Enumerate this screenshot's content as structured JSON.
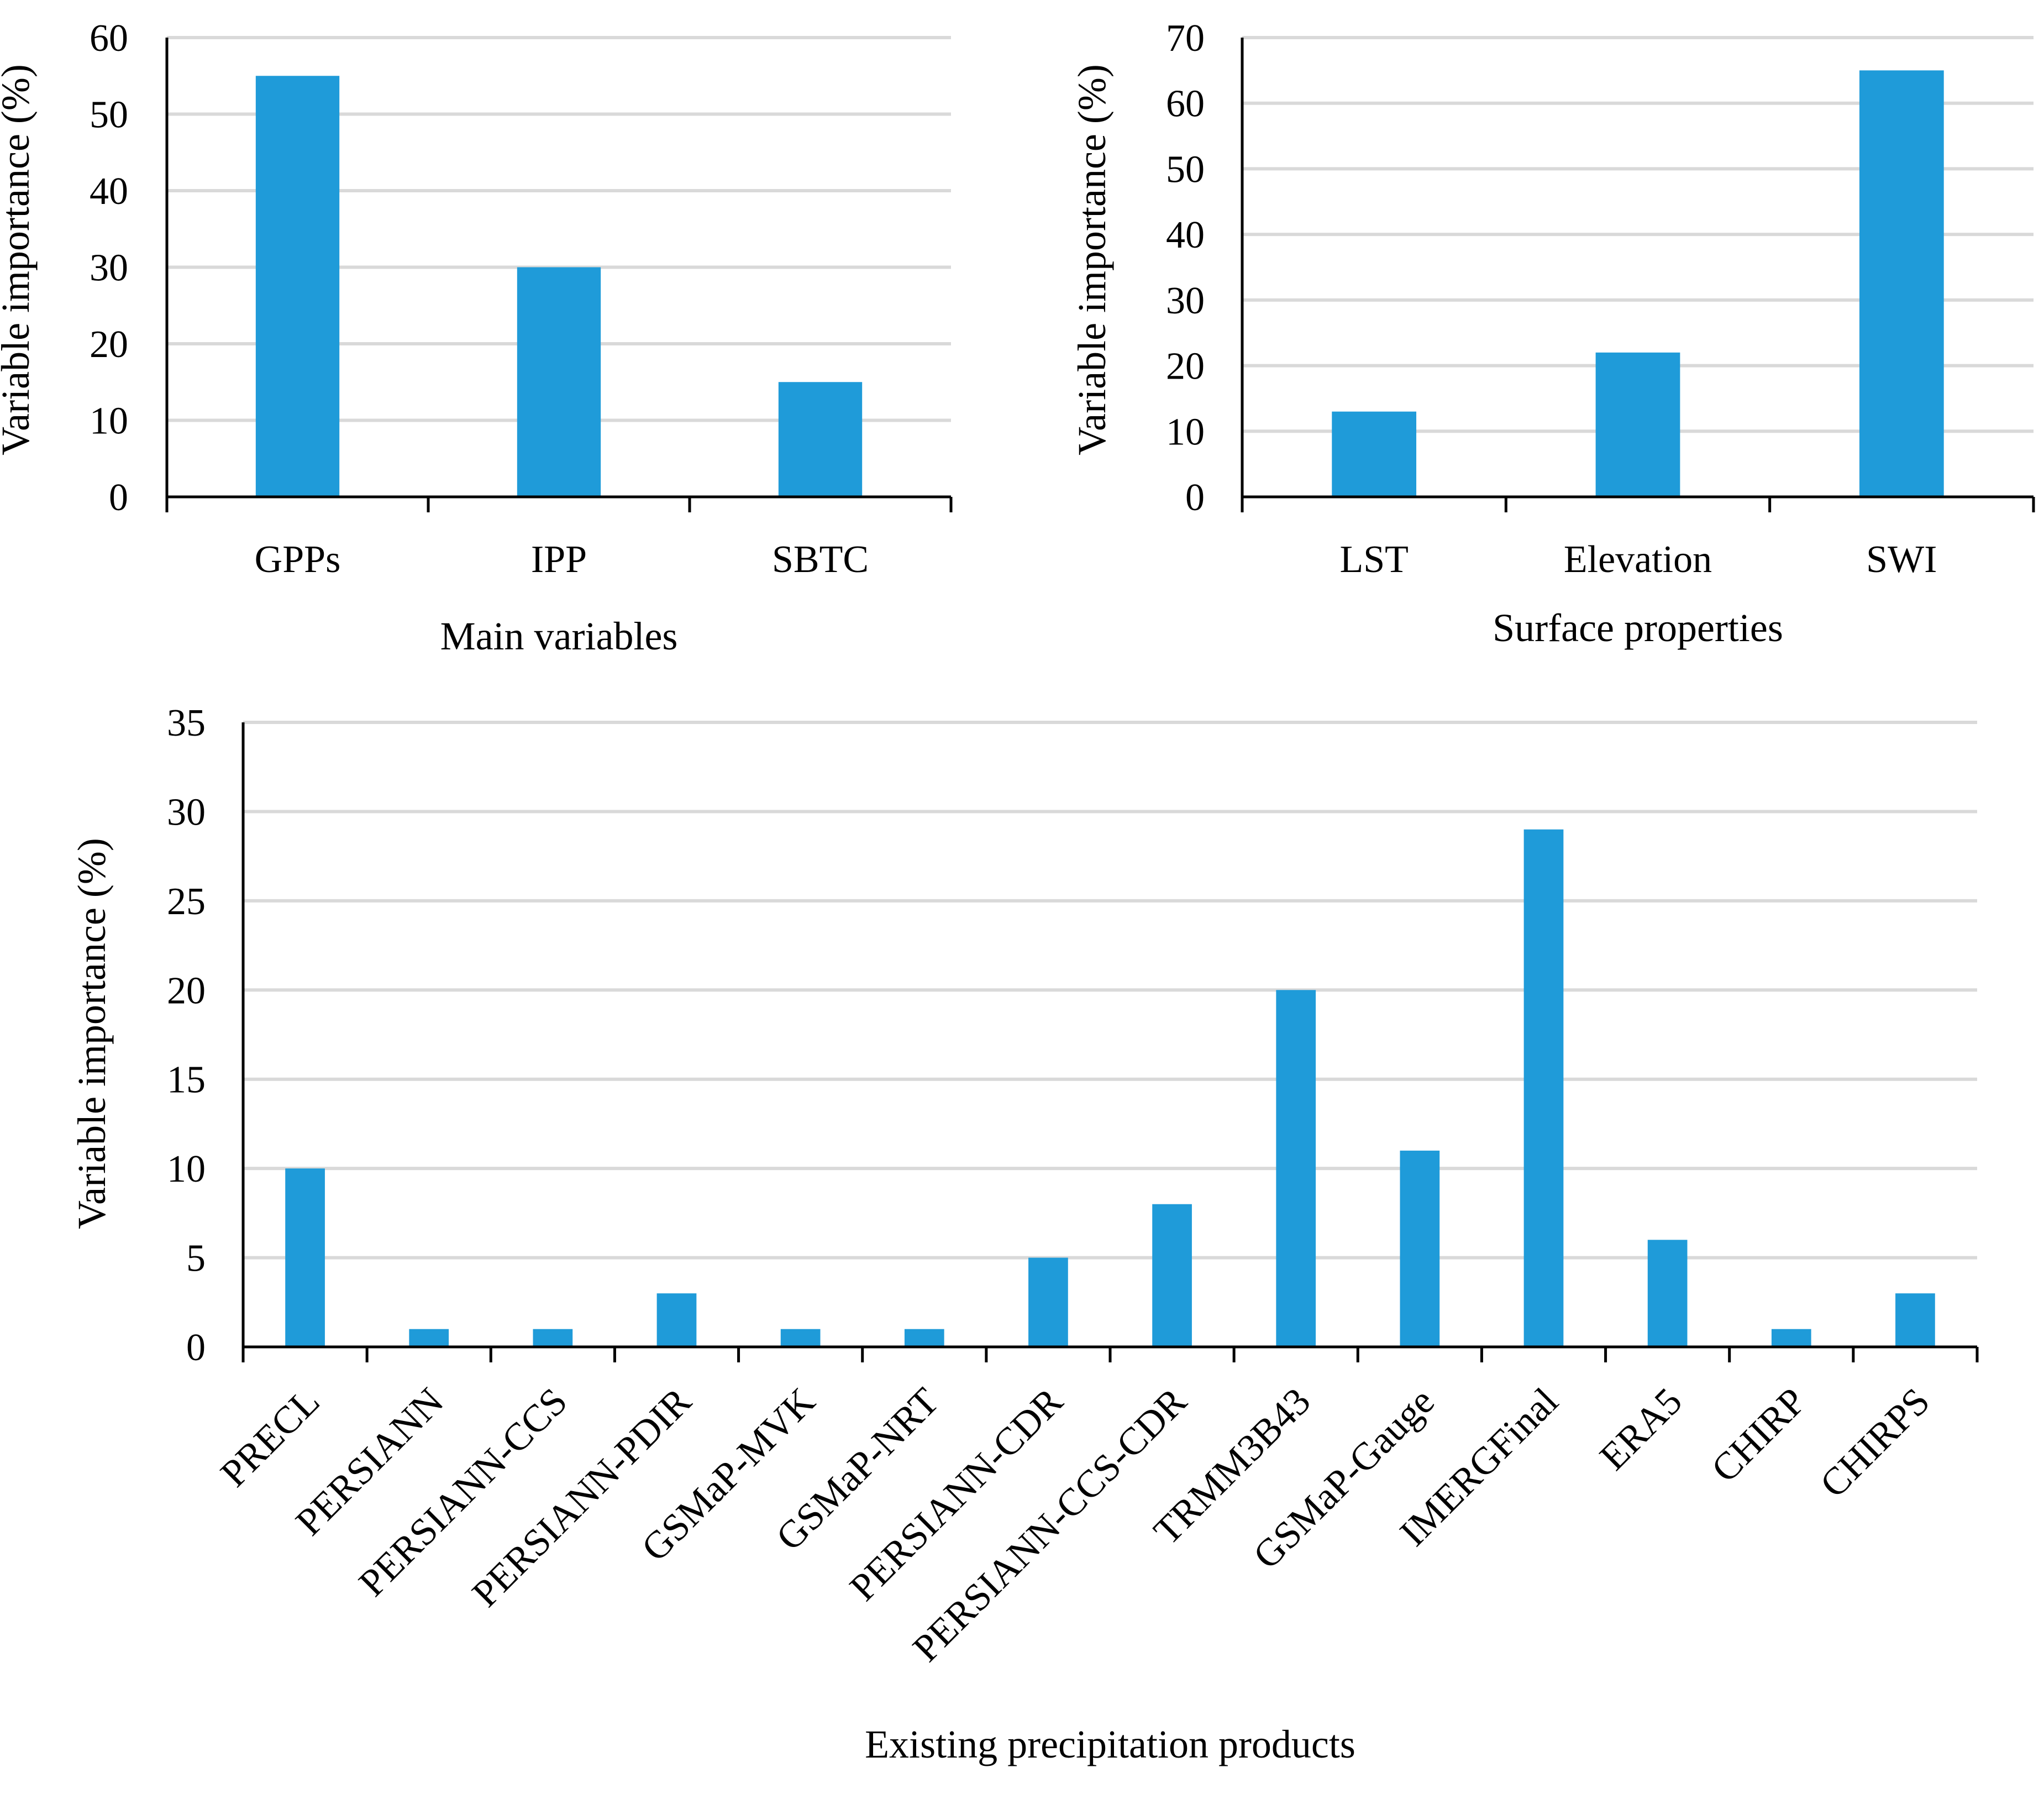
{
  "colors": {
    "bar": "#1f9bd9",
    "grid": "#d9d9d9",
    "axis": "#000000"
  },
  "chart_data": [
    {
      "type": "bar",
      "title": "",
      "xlabel": "Main variables",
      "ylabel": "Variable importance (%)",
      "categories": [
        "GPPs",
        "IPP",
        "SBTC"
      ],
      "values": [
        55,
        30,
        15
      ],
      "ylim": [
        0,
        60
      ],
      "yticks": [
        0,
        10,
        20,
        30,
        40,
        50,
        60
      ],
      "grid": true,
      "legend": "none"
    },
    {
      "type": "bar",
      "title": "",
      "xlabel": "Surface properties",
      "ylabel": "Variable importance (%)",
      "categories": [
        "LST",
        "Elevation",
        "SWI"
      ],
      "values": [
        13,
        22,
        65
      ],
      "ylim": [
        0,
        70
      ],
      "yticks": [
        0,
        10,
        20,
        30,
        40,
        50,
        60,
        70
      ],
      "grid": true,
      "legend": "none"
    },
    {
      "type": "bar",
      "title": "",
      "xlabel": "Existing precipitation products",
      "ylabel": "Variable importance (%)",
      "categories": [
        "PRECL",
        "PERSIANN",
        "PERSIANN-CCS",
        "PERSIANN-PDIR",
        "GSMaP-MVK",
        "GSMaP-NRT",
        "PERSIANN-CDR",
        "PERSIANN-CCS-CDR",
        "TRMM3B43",
        "GSMaP-Gauge",
        "IMERGFinal",
        "ERA5",
        "CHIRP",
        "CHIRPS"
      ],
      "values": [
        10,
        1,
        1,
        3,
        1,
        1,
        5,
        8,
        20,
        11,
        29,
        6,
        1,
        3
      ],
      "ylim": [
        0,
        35
      ],
      "yticks": [
        0,
        5,
        10,
        15,
        20,
        25,
        30,
        35
      ],
      "grid": true,
      "legend": "none"
    }
  ]
}
